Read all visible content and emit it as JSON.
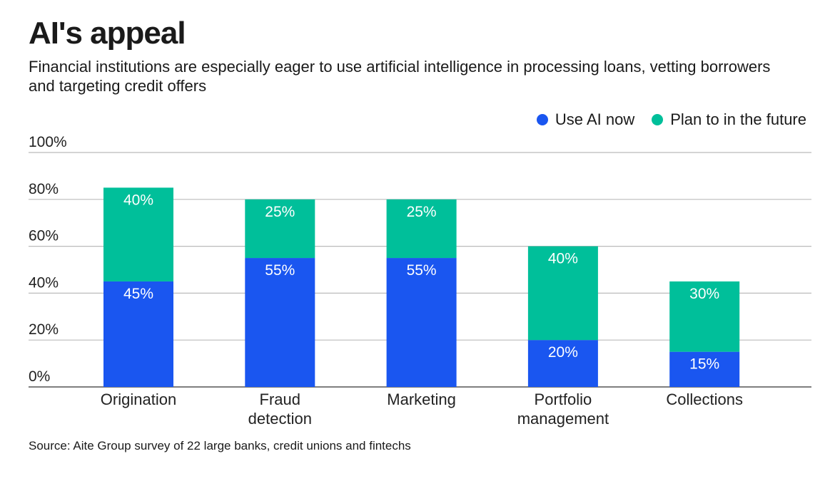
{
  "chart_data": {
    "type": "bar",
    "stacked": true,
    "title": "AI's appeal",
    "subtitle": "Financial institutions are especially eager to use artificial intelligence in processing loans, vetting borrowers and targeting credit offers",
    "categories": [
      [
        "Origination"
      ],
      [
        "Fraud",
        "detection"
      ],
      [
        "Marketing"
      ],
      [
        "Portfolio",
        "management"
      ],
      [
        "Collections"
      ]
    ],
    "series": [
      {
        "name": "Use AI now",
        "color": "#1a56f0",
        "values": [
          45,
          55,
          55,
          20,
          15
        ]
      },
      {
        "name": "Plan to in the future",
        "color": "#00bf9a",
        "values": [
          40,
          25,
          25,
          40,
          30
        ]
      }
    ],
    "yticks": [
      "0%",
      "20%",
      "40%",
      "60%",
      "80%",
      "100%"
    ],
    "ylim": [
      0,
      100
    ],
    "grid": true,
    "legend_position": "top-right",
    "xlabel": "",
    "ylabel": "",
    "source": "Source: Aite Group survey of 22 large banks, credit unions and fintechs"
  }
}
